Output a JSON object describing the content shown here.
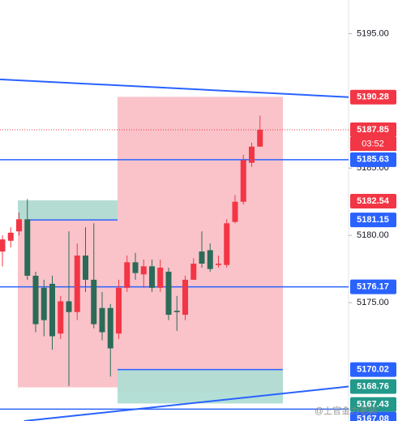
{
  "chart_data": {
    "type": "candlestick",
    "ylim": [
      5166.2,
      5197.5
    ],
    "yticks": [
      {
        "value": 5195,
        "label": "5195.00"
      },
      {
        "value": 5185,
        "label": "5185.00"
      },
      {
        "value": 5180,
        "label": "5180.00"
      },
      {
        "value": 5175,
        "label": "5175.00"
      }
    ],
    "up_color": "#f23645",
    "down_color": "#2b6b58",
    "candles": {
      "open": [
        5178.8,
        5179.6,
        5180.3,
        5181.2,
        5177.0,
        5176.1,
        5176.4,
        5172.7,
        5175.1,
        5174.3,
        5178.5,
        5176.7,
        5174.6,
        5174.6,
        5172.7,
        5176.1,
        5178.0,
        5177.1,
        5177.7,
        5176.1,
        5177.3,
        5174.4,
        5174.1,
        5176.7,
        5178.8,
        5178.9,
        5177.8,
        5177.8,
        5181.0,
        5182.5,
        5185.4,
        5186.6
      ],
      "high": [
        5180.0,
        5180.6,
        5181.7,
        5182.7,
        5177.3,
        5176.7,
        5177.0,
        5175.5,
        5180.3,
        5179.4,
        5180.6,
        5180.9,
        5175.8,
        5174.9,
        5176.7,
        5178.5,
        5178.7,
        5178.2,
        5178.2,
        5178.2,
        5177.6,
        5175.5,
        5177.0,
        5178.3,
        5180.3,
        5179.4,
        5178.5,
        5181.2,
        5183.0,
        5186.0,
        5186.9,
        5188.9
      ],
      "low": [
        5177.7,
        5179.1,
        5180.0,
        5176.7,
        5172.8,
        5172.5,
        5171.5,
        5172.3,
        5168.8,
        5173.7,
        5175.8,
        5173.1,
        5172.2,
        5169.5,
        5172.3,
        5175.8,
        5176.7,
        5176.1,
        5175.8,
        5175.8,
        5173.7,
        5172.9,
        5173.7,
        5176.7,
        5177.6,
        5177.3,
        5177.6,
        5177.6,
        5180.9,
        5182.3,
        5185.1,
        5186.6
      ],
      "close": [
        5179.7,
        5180.2,
        5181.2,
        5177.0,
        5173.4,
        5173.7,
        5172.5,
        5175.1,
        5174.3,
        5178.5,
        5176.7,
        5173.4,
        5172.8,
        5171.6,
        5176.1,
        5178.0,
        5177.2,
        5177.7,
        5176.1,
        5177.6,
        5174.1,
        5174.3,
        5176.7,
        5177.9,
        5177.9,
        5177.5,
        5177.9,
        5180.9,
        5182.5,
        5185.6,
        5186.6,
        5187.85
      ]
    },
    "zones": [
      {
        "top": 5182.6,
        "bottom": 5168.7,
        "fill": "#f9c0c6"
      },
      {
        "top": 5190.3,
        "bottom": 5168.3,
        "fill": "#f9c0c6"
      },
      {
        "top": 5182.6,
        "bottom": 5181.2,
        "fill": "#b0ddd4"
      },
      {
        "top": 5170.0,
        "bottom": 5167.5,
        "fill": "#b0ddd4"
      }
    ],
    "levels": [
      {
        "value": 5190.28,
        "color": "#f23645",
        "line": "trend",
        "start": 5191.6
      },
      {
        "value": 5187.85,
        "color": "#f23645",
        "line": "dotted"
      },
      {
        "value": 5185.63,
        "color": "#2962ff",
        "line": "horizontal"
      },
      {
        "value": 5182.54,
        "color": "#f23645"
      },
      {
        "value": 5181.15,
        "color": "#2962ff",
        "line": "segment"
      },
      {
        "value": 5176.17,
        "color": "#2962ff",
        "line": "horizontal"
      },
      {
        "value": 5170.02,
        "color": "#2962ff",
        "line": "segment"
      },
      {
        "value": 5168.76,
        "color": "#22998a",
        "line": "trend",
        "start": 5166.2
      },
      {
        "value": 5167.43,
        "color": "#22998a"
      },
      {
        "value": 5167.08,
        "color": "#2962ff",
        "line": "horizontal"
      }
    ],
    "countdown": "03:52"
  },
  "watermark": "@上官金力老郭"
}
